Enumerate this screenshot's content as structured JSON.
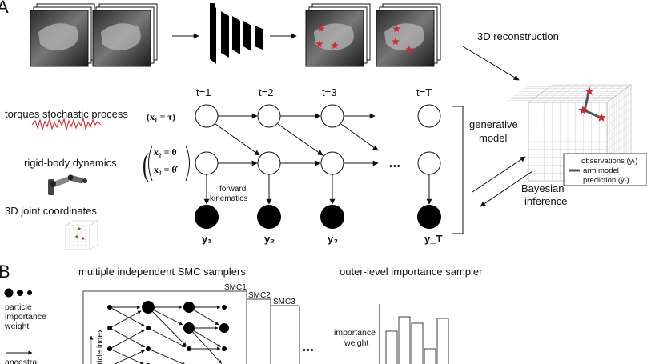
{
  "panels": {
    "a": {
      "letter": "A"
    },
    "b": {
      "letter": "B"
    }
  },
  "panel_a": {
    "reconstruction_label": "3D reconstruction",
    "time_labels": [
      "t=1",
      "t=2",
      "t=3",
      "t=T"
    ],
    "ellipsis": "•••",
    "rows": {
      "torques": "torques stochastic process",
      "dynamics": "rigid-body dynamics",
      "joints": "3D joint coordinates"
    },
    "equations": {
      "x1": "(x₁ = τ)",
      "x2": "x₂ = θ",
      "x3": "x₃ = θ̇"
    },
    "forward_kinematics": [
      "forward",
      "kinematics"
    ],
    "observations": [
      "y₁",
      "y₂",
      "y₃",
      "y_T"
    ],
    "generative_model": [
      "generative",
      "model"
    ],
    "bayesian_inference": [
      "Bayesian",
      "inference"
    ],
    "legend": {
      "observations": "observations (yₜ)",
      "arm_model": "arm model",
      "prediction": "prediction (ŷₜ)"
    },
    "colors": {
      "star": "#d9252b",
      "torque_line": "#d9252b",
      "bar": "#555555"
    }
  },
  "panel_b": {
    "smc_title": "multiple independent SMC samplers",
    "outer_title": "outer-level importance sampler",
    "particle_legend": [
      "particle",
      "importance",
      "weight"
    ],
    "ancestral_label": "ancestral",
    "axis_label": "particle index",
    "sampler_labels": [
      "SMC1",
      "SMC2",
      "SMC3"
    ],
    "ellipsis": "•••",
    "importance_weight": [
      "importance",
      "weight"
    ]
  }
}
